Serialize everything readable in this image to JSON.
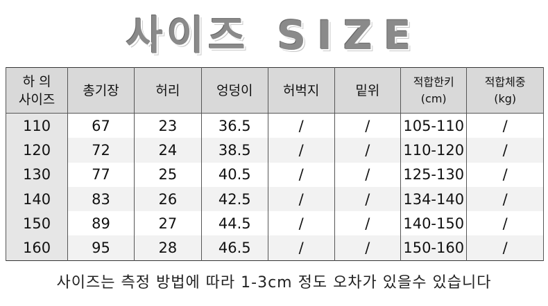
{
  "title": {
    "ko": "사이즈",
    "en": "SIZE"
  },
  "table": {
    "headers": [
      [
        "하 의",
        "사이즈"
      ],
      [
        "총기장"
      ],
      [
        "허리"
      ],
      [
        "엉덩이"
      ],
      [
        "허벅지"
      ],
      [
        "밑위"
      ],
      [
        "적합한키",
        "(cm)"
      ],
      [
        "적합체중",
        "(kg)"
      ]
    ],
    "rows": [
      [
        "110",
        "67",
        "23",
        "36.5",
        "/",
        "/",
        "105-110",
        "/"
      ],
      [
        "120",
        "72",
        "24",
        "38.5",
        "/",
        "/",
        "110-120",
        "/"
      ],
      [
        "130",
        "77",
        "25",
        "40.5",
        "/",
        "/",
        "125-130",
        "/"
      ],
      [
        "140",
        "83",
        "26",
        "42.5",
        "/",
        "/",
        "134-140",
        "/"
      ],
      [
        "150",
        "89",
        "27",
        "44.5",
        "/",
        "/",
        "140-150",
        "/"
      ],
      [
        "160",
        "95",
        "28",
        "46.5",
        "/",
        "/",
        "150-160",
        "/"
      ]
    ]
  },
  "footer": "사이즈는 측정 방법에 따라 1-3cm 정도 오차가 있을수 있습니다"
}
